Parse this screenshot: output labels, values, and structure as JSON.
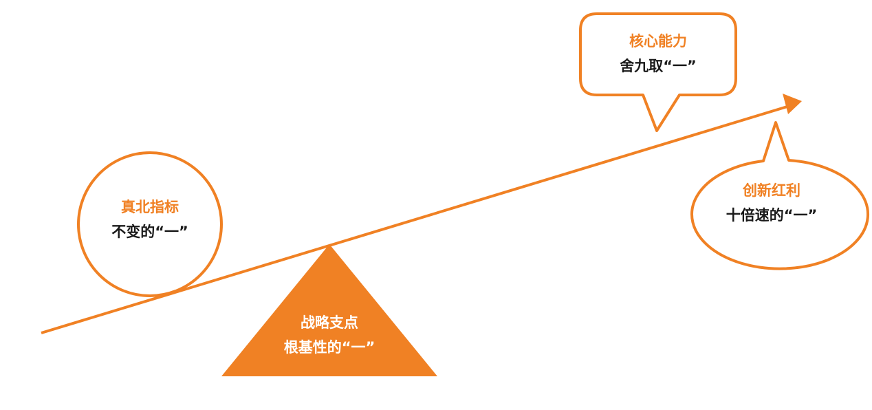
{
  "colors": {
    "accent": "#f08124",
    "text": "#1a1a1a",
    "background": "#ffffff"
  },
  "nodes": {
    "true_north": {
      "title": "真北指标",
      "subtitle": "不变的“一”"
    },
    "core_capability": {
      "title": "核心能力",
      "subtitle": "舍九取“一”"
    },
    "innovation_dividend": {
      "title": "创新红利",
      "subtitle": "十倍速的“一”"
    },
    "strategic_fulcrum": {
      "title": "战略支点",
      "subtitle": "根基性的“一”"
    }
  }
}
